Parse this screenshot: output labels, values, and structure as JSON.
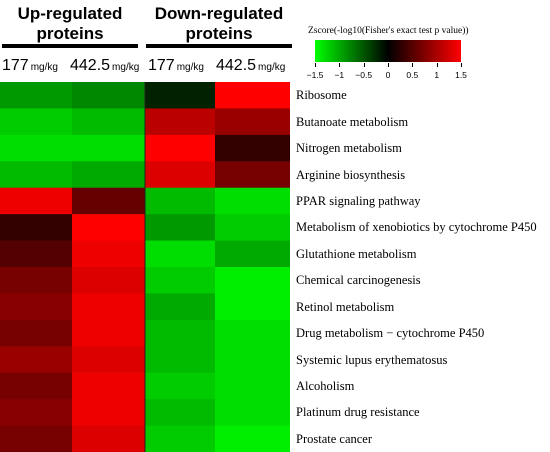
{
  "chart_data": {
    "type": "heatmap",
    "groups": [
      {
        "title_line1": "Up-regulated",
        "title_line2": "proteins"
      },
      {
        "title_line1": "Down-regulated",
        "title_line2": "proteins"
      }
    ],
    "columns": [
      {
        "dose": "177",
        "unit": "mg/kg",
        "group": "Up-regulated proteins"
      },
      {
        "dose": "442.5",
        "unit": "mg/kg",
        "group": "Up-regulated proteins"
      },
      {
        "dose": "177",
        "unit": "mg/kg",
        "group": "Down-regulated proteins"
      },
      {
        "dose": "442.5",
        "unit": "mg/kg",
        "group": "Down-regulated proteins"
      }
    ],
    "pathways": [
      "Ribosome",
      "Butanoate metabolism",
      "Nitrogen metabolism",
      "Arginine biosynthesis",
      "PPAR signaling pathway",
      "Metabolism of xenobiotics by cytochrome P450",
      "Glutathione metabolism",
      "Chemical carcinogenesis",
      "Retinol metabolism",
      "Drug metabolism − cytochrome P450",
      "Systemic lupus erythematosus",
      "Alcoholism",
      "Platinum drug resistance",
      "Prostate cancer"
    ],
    "values": [
      [
        -0.9,
        -0.8,
        -0.2,
        1.5
      ],
      [
        -1.2,
        -1.1,
        1.1,
        0.9
      ],
      [
        -1.3,
        -1.3,
        1.5,
        0.3
      ],
      [
        -1.1,
        -1.0,
        1.3,
        0.7
      ],
      [
        1.4,
        0.6,
        -1.1,
        -1.3
      ],
      [
        0.3,
        1.5,
        -0.9,
        -1.2
      ],
      [
        0.5,
        1.4,
        -1.3,
        -1.0
      ],
      [
        0.7,
        1.3,
        -1.2,
        -1.4
      ],
      [
        0.8,
        1.4,
        -1.0,
        -1.4
      ],
      [
        0.7,
        1.4,
        -1.1,
        -1.3
      ],
      [
        0.9,
        1.3,
        -1.1,
        -1.3
      ],
      [
        0.7,
        1.4,
        -1.2,
        -1.3
      ],
      [
        0.8,
        1.4,
        -1.1,
        -1.3
      ],
      [
        0.7,
        1.3,
        -1.2,
        -1.4
      ]
    ],
    "colorbar": {
      "title": "Zscore(-log10(Fisher's exact test p value))",
      "range": [
        -1.5,
        1.5
      ],
      "ticks": [
        "−1.5",
        "−1",
        "−0.5",
        "0",
        "0.5",
        "1",
        "1.5"
      ],
      "tick_values": [
        -1.5,
        -1,
        -0.5,
        0,
        0.5,
        1,
        1.5
      ],
      "colors": {
        "low": "#00ff00",
        "mid": "#000000",
        "high": "#ff0000"
      }
    }
  }
}
